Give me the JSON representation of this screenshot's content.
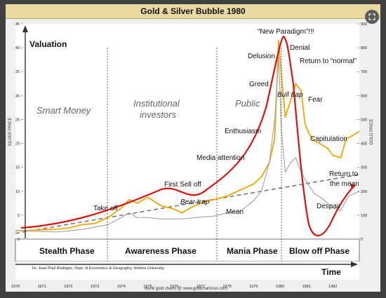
{
  "header": {
    "title": "Gold & Silver Bubble 1980"
  },
  "annotations": {
    "valuation": "Valuation",
    "smart_money": "Smart Money",
    "institutional_1": "Institutional",
    "institutional_2": "investors",
    "public": "Public",
    "take_off": "Take off",
    "first_sell_off": "First Sell off",
    "bear_trap": "Bear trap",
    "media_attention": "Media attention",
    "enthusiasm": "Enthusiasm",
    "greed": "Greed",
    "delusion": "Delusion",
    "new_paradigm": "“New Paradigm”!!!",
    "denial": "Denial",
    "bull_trap": "Bull trap",
    "return_normal": "Return to “normal”",
    "fear": "Fear",
    "capitulation": "Capitulation",
    "return_mean_1": "Return to",
    "return_mean_2": "the mean",
    "despair": "Despair",
    "mean": "Mean",
    "time": "Time",
    "credit": "Dr. Jean-Paul Rodrigue, Dept. of Economics & Geography, Hofstra University",
    "source": "world gold charts @ www.goldchartsrus.com"
  },
  "phases": [
    "Stealth Phase",
    "Awareness Phase",
    "Mania Phase",
    "Blow off Phase"
  ],
  "colors": {
    "gold": "#f0a800",
    "silver": "#a8a8a8",
    "bubble": "#e01010",
    "mean": "#777777"
  },
  "chart_data": {
    "type": "line",
    "ylabel_left": "SILVER PRICE",
    "ylabel_right": "GOLD PRICE",
    "xlim": [
      1970,
      1983
    ],
    "x_ticks": [
      "1970",
      "1971",
      "1972",
      "1973",
      "1974",
      "1975",
      "1976",
      "1977",
      "1978",
      "1979",
      "1980",
      "1981",
      "1982"
    ],
    "left_ylim": [
      0,
      45
    ],
    "left_ticks": [
      "0",
      "5",
      "10",
      "15",
      "20",
      "25",
      "30",
      "35",
      "40",
      "45"
    ],
    "right_ylim": [
      0,
      900
    ],
    "right_ticks": [
      "0",
      "100",
      "200",
      "300",
      "400",
      "500",
      "600",
      "700",
      "800",
      "900"
    ],
    "series": [
      {
        "name": "Gold",
        "axis": "right",
        "x": [
          1970.0,
          1970.5,
          1971.0,
          1971.5,
          1972.0,
          1972.5,
          1973.0,
          1973.5,
          1974.0,
          1974.3,
          1974.6,
          1975.0,
          1975.5,
          1976.0,
          1976.3,
          1976.6,
          1977.0,
          1977.5,
          1978.0,
          1978.5,
          1979.0,
          1979.3,
          1979.6,
          1979.8,
          1979.95,
          1980.05,
          1980.2,
          1980.4,
          1980.6,
          1980.8,
          1980.95,
          1981.1,
          1981.3,
          1981.5,
          1981.8,
          1982.0,
          1982.3,
          1982.5,
          1982.7,
          1983.0
        ],
        "y": [
          35,
          36,
          39,
          41,
          46,
          60,
          65,
          90,
          130,
          165,
          150,
          175,
          140,
          125,
          110,
          130,
          150,
          165,
          180,
          205,
          230,
          260,
          320,
          420,
          830,
          690,
          510,
          580,
          650,
          620,
          480,
          440,
          410,
          400,
          380,
          350,
          340,
          420,
          430,
          450
        ]
      },
      {
        "name": "Silver",
        "axis": "left",
        "x": [
          1970.0,
          1970.5,
          1971.0,
          1971.5,
          1972.0,
          1972.5,
          1973.0,
          1973.5,
          1974.0,
          1974.3,
          1974.6,
          1975.0,
          1975.5,
          1976.0,
          1976.5,
          1977.0,
          1977.5,
          1978.0,
          1978.5,
          1979.0,
          1979.3,
          1979.6,
          1979.8,
          1979.95,
          1980.05,
          1980.2,
          1980.4,
          1980.6,
          1980.8,
          1981.0,
          1981.3,
          1981.6,
          1982.0,
          1982.3,
          1982.6,
          1983.0
        ],
        "y": [
          1.8,
          1.7,
          1.6,
          1.5,
          1.7,
          2.0,
          2.5,
          3.0,
          4.5,
          5.5,
          4.5,
          4.5,
          4.2,
          4.2,
          4.3,
          4.6,
          4.8,
          5.5,
          5.8,
          8.0,
          10.0,
          16.0,
          25.0,
          38.0,
          23.0,
          14.0,
          16.0,
          17.0,
          14.0,
          12.0,
          9.5,
          8.5,
          6.5,
          6.0,
          9.0,
          10.0
        ]
      }
    ]
  }
}
